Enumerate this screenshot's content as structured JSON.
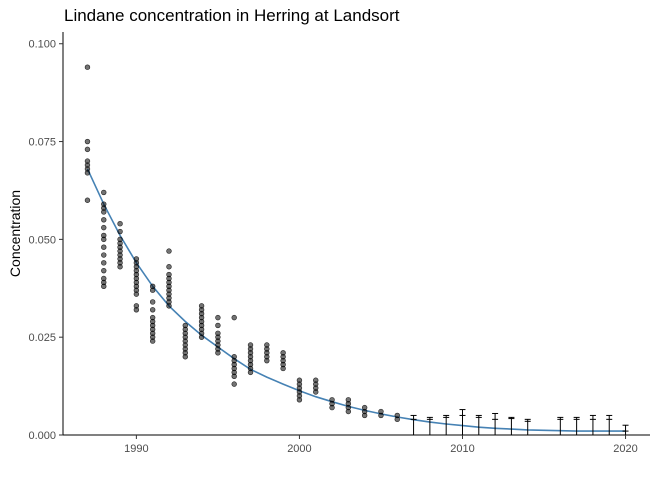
{
  "chart_data": {
    "type": "scatter",
    "title": "Lindane concentration in Herring at Landsort",
    "xlabel": "",
    "ylabel": "Concentration",
    "xlim": [
      1985.5,
      2021.5
    ],
    "ylim": [
      0,
      0.103
    ],
    "x_ticks": [
      1990,
      2000,
      2010,
      2020
    ],
    "y_ticks": [
      0.0,
      0.025,
      0.05,
      0.075,
      0.1
    ],
    "x_tick_labels": [
      "1990",
      "2000",
      "2010",
      "2020"
    ],
    "y_tick_labels": [
      "0.000",
      "0.025",
      "0.050",
      "0.075",
      "0.100"
    ],
    "grid": false,
    "legend": "none",
    "point_color": "#000000",
    "trend_color": "#4682B4",
    "points": [
      {
        "year": 1987,
        "values": [
          0.094,
          0.075,
          0.073,
          0.07,
          0.069,
          0.068,
          0.067,
          0.06
        ]
      },
      {
        "year": 1988,
        "values": [
          0.062,
          0.059,
          0.058,
          0.057,
          0.055,
          0.053,
          0.051,
          0.05,
          0.048,
          0.046,
          0.044,
          0.042,
          0.04,
          0.039,
          0.038
        ]
      },
      {
        "year": 1989,
        "values": [
          0.054,
          0.052,
          0.05,
          0.049,
          0.048,
          0.047,
          0.046,
          0.045,
          0.044,
          0.043
        ]
      },
      {
        "year": 1990,
        "values": [
          0.045,
          0.044,
          0.043,
          0.042,
          0.041,
          0.04,
          0.039,
          0.038,
          0.037,
          0.036,
          0.033,
          0.032
        ]
      },
      {
        "year": 1991,
        "values": [
          0.038,
          0.037,
          0.034,
          0.032,
          0.03,
          0.029,
          0.028,
          0.027,
          0.026,
          0.025,
          0.024
        ]
      },
      {
        "year": 1992,
        "values": [
          0.047,
          0.043,
          0.041,
          0.04,
          0.039,
          0.038,
          0.037,
          0.036,
          0.035,
          0.034,
          0.033
        ]
      },
      {
        "year": 1993,
        "values": [
          0.028,
          0.027,
          0.026,
          0.025,
          0.024,
          0.023,
          0.022,
          0.021,
          0.02
        ]
      },
      {
        "year": 1994,
        "values": [
          0.033,
          0.032,
          0.031,
          0.03,
          0.029,
          0.028,
          0.027,
          0.026,
          0.025
        ]
      },
      {
        "year": 1995,
        "values": [
          0.03,
          0.028,
          0.026,
          0.025,
          0.024,
          0.023,
          0.022,
          0.021
        ]
      },
      {
        "year": 1996,
        "values": [
          0.03,
          0.02,
          0.019,
          0.018,
          0.017,
          0.016,
          0.015,
          0.013
        ]
      },
      {
        "year": 1997,
        "values": [
          0.023,
          0.022,
          0.021,
          0.02,
          0.019,
          0.018,
          0.017,
          0.016
        ]
      },
      {
        "year": 1998,
        "values": [
          0.023,
          0.022,
          0.021,
          0.02,
          0.019
        ]
      },
      {
        "year": 1999,
        "values": [
          0.021,
          0.02,
          0.019,
          0.018,
          0.017
        ]
      },
      {
        "year": 2000,
        "values": [
          0.014,
          0.013,
          0.012,
          0.011,
          0.01,
          0.009
        ]
      },
      {
        "year": 2001,
        "values": [
          0.014,
          0.013,
          0.012,
          0.011
        ]
      },
      {
        "year": 2002,
        "values": [
          0.009,
          0.008,
          0.007
        ]
      },
      {
        "year": 2003,
        "values": [
          0.009,
          0.008,
          0.007,
          0.006
        ]
      },
      {
        "year": 2004,
        "values": [
          0.007,
          0.006,
          0.005
        ]
      },
      {
        "year": 2005,
        "values": [
          0.006,
          0.005
        ]
      },
      {
        "year": 2006,
        "values": [
          0.005,
          0.004
        ]
      }
    ],
    "censored": [
      {
        "year": 2007,
        "upper": 0.005,
        "mid": 0.004
      },
      {
        "year": 2008,
        "upper": 0.0045,
        "mid": 0.004
      },
      {
        "year": 2009,
        "upper": 0.005,
        "mid": 0.0045
      },
      {
        "year": 2010,
        "upper": 0.0065,
        "mid": 0.005
      },
      {
        "year": 2011,
        "upper": 0.005,
        "mid": 0.0045
      },
      {
        "year": 2012,
        "upper": 0.0055,
        "mid": 0.004
      },
      {
        "year": 2013,
        "upper": 0.0045,
        "mid": 0.0042
      },
      {
        "year": 2014,
        "upper": 0.004,
        "mid": 0.0035
      },
      {
        "year": 2016,
        "upper": 0.0045,
        "mid": 0.004
      },
      {
        "year": 2017,
        "upper": 0.0045,
        "mid": 0.004
      },
      {
        "year": 2018,
        "upper": 0.005,
        "mid": 0.004
      },
      {
        "year": 2019,
        "upper": 0.005,
        "mid": 0.004
      },
      {
        "year": 2020,
        "upper": 0.0025,
        "mid": 0.001
      }
    ],
    "trend": {
      "x": [
        1987,
        1988,
        1989,
        1990,
        1991,
        1992,
        1993,
        1994,
        1995,
        1996,
        1997,
        1998,
        1999,
        2000,
        2001,
        2002,
        2003,
        2004,
        2005,
        2006,
        2007,
        2008,
        2009,
        2010,
        2011,
        2012,
        2013,
        2014,
        2015,
        2016,
        2017,
        2018,
        2019,
        2020
      ],
      "y": [
        0.068,
        0.059,
        0.051,
        0.044,
        0.038,
        0.033,
        0.029,
        0.0255,
        0.0225,
        0.0195,
        0.0168,
        0.0148,
        0.013,
        0.0113,
        0.0098,
        0.0085,
        0.0073,
        0.0063,
        0.0054,
        0.0046,
        0.0039,
        0.0033,
        0.0028,
        0.0024,
        0.002,
        0.0017,
        0.0015,
        0.0013,
        0.0012,
        0.0011,
        0.001,
        0.001,
        0.001,
        0.001
      ]
    }
  }
}
